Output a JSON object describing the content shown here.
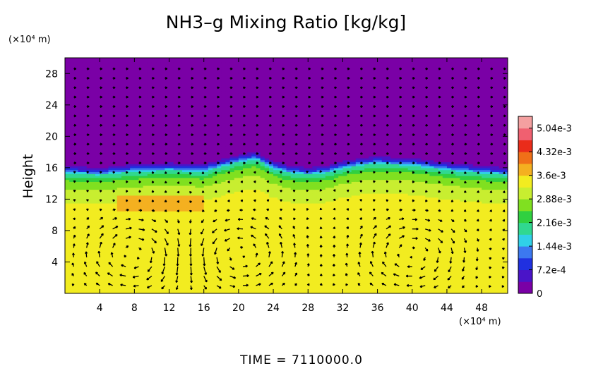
{
  "chart_data": {
    "type": "heatmap",
    "title": "NH3–g Mixing Ratio [kg/kg]",
    "ylabel": "Height",
    "x_unit": "(×10⁴ m)",
    "y_unit": "(×10⁴ m)",
    "xlim": [
      0,
      51
    ],
    "ylim": [
      0,
      30
    ],
    "x_ticks": [
      4,
      8,
      12,
      16,
      20,
      24,
      28,
      32,
      36,
      40,
      44,
      48
    ],
    "y_ticks": [
      4,
      8,
      12,
      16,
      20,
      24,
      28
    ],
    "x_tick_labels": [
      "4",
      "8",
      "12",
      "16",
      "20",
      "24",
      "28",
      "32",
      "36",
      "40",
      "44",
      "48"
    ],
    "y_tick_labels": [
      "4",
      "8",
      "12",
      "16",
      "20",
      "24",
      "28"
    ],
    "colorbar": {
      "range": [
        0,
        0.0054
      ],
      "tick_values": [
        0,
        0.00072,
        0.00144,
        0.00216,
        0.00288,
        0.0036,
        0.00432,
        0.00504
      ],
      "tick_labels": [
        "0",
        "7.2e-4",
        "1.44e-3",
        "2.16e-3",
        "2.88e-3",
        "3.6e-3",
        "4.32e-3",
        "5.04e-3"
      ],
      "colors": [
        "#7a00a6",
        "#4a14c8",
        "#2030e0",
        "#3c78f0",
        "#30d0e8",
        "#30d890",
        "#30d040",
        "#80e020",
        "#c8ee30",
        "#f2ec20",
        "#f4b020",
        "#f07018",
        "#ea2c1a",
        "#f06070",
        "#f4a0a0"
      ]
    },
    "field_profile": {
      "height": [
        0,
        4,
        8,
        10,
        12,
        14,
        15,
        16,
        16.5,
        17,
        18,
        30
      ],
      "mixing_ratio": [
        0.0035,
        0.0035,
        0.0035,
        0.0034,
        0.0033,
        0.0029,
        0.0026,
        0.0018,
        0.0009,
        0.0003,
        0.0,
        0.0
      ]
    },
    "cloud_top_height": [
      {
        "x": 0,
        "y": 15.8
      },
      {
        "x": 4,
        "y": 15.6
      },
      {
        "x": 8,
        "y": 16.0
      },
      {
        "x": 12,
        "y": 16.2
      },
      {
        "x": 16,
        "y": 16.0
      },
      {
        "x": 18,
        "y": 16.6
      },
      {
        "x": 20,
        "y": 17.2
      },
      {
        "x": 22,
        "y": 17.6
      },
      {
        "x": 24,
        "y": 16.4
      },
      {
        "x": 26,
        "y": 15.8
      },
      {
        "x": 28,
        "y": 15.6
      },
      {
        "x": 30,
        "y": 15.8
      },
      {
        "x": 32,
        "y": 16.4
      },
      {
        "x": 34,
        "y": 16.8
      },
      {
        "x": 36,
        "y": 17.0
      },
      {
        "x": 40,
        "y": 16.8
      },
      {
        "x": 44,
        "y": 16.2
      },
      {
        "x": 48,
        "y": 15.8
      },
      {
        "x": 51,
        "y": 15.6
      }
    ],
    "enhanced_region": {
      "x_range": [
        6,
        16
      ],
      "y_range": [
        10.5,
        12.5
      ],
      "mixing_ratio": 0.0038
    },
    "circulation_cells": [
      {
        "x": 8,
        "y": 5,
        "sense": "clockwise"
      },
      {
        "x": 20,
        "y": 5,
        "sense": "counterclockwise"
      },
      {
        "x": 40,
        "y": 5,
        "sense": "clockwise"
      }
    ]
  },
  "footer": {
    "time_label": "TIME  =  7110000.0"
  }
}
